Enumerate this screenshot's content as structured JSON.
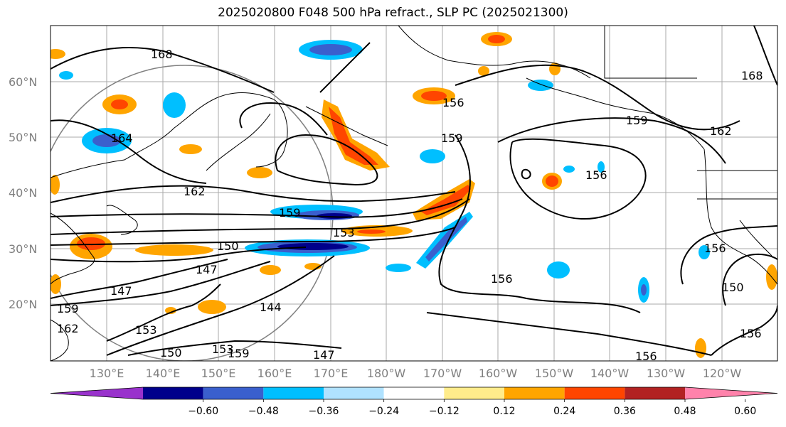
{
  "title": "2025020800 F048 500 hPa refract., SLP PC (2025021300)",
  "map": {
    "lat_labels": [
      "60°N",
      "50°N",
      "40°N",
      "30°N",
      "20°N"
    ],
    "lon_labels": [
      "130°E",
      "140°E",
      "150°E",
      "160°E",
      "170°E",
      "180°W",
      "170°W",
      "160°W",
      "150°W",
      "140°W",
      "130°W",
      "120°W"
    ],
    "contour_labels": [
      "168",
      "164",
      "162",
      "159",
      "159",
      "153",
      "150",
      "147",
      "147",
      "144",
      "153",
      "162",
      "159",
      "156",
      "159",
      "156",
      "156",
      "162",
      "168",
      "156",
      "150",
      "156",
      "156",
      "150",
      "153",
      "147",
      "159"
    ]
  },
  "colorbar": {
    "ticks": [
      "−0.60",
      "−0.48",
      "−0.36",
      "−0.24",
      "−0.12",
      "0.12",
      "0.24",
      "0.36",
      "0.48",
      "0.60"
    ],
    "colors": [
      "#9932cc",
      "#00008b",
      "#3a5fcd",
      "#00bfff",
      "#b0e2ff",
      "#ffffff",
      "#ffec8b",
      "#ffa500",
      "#ff4500",
      "#b22222",
      "#ff82ab"
    ]
  }
}
